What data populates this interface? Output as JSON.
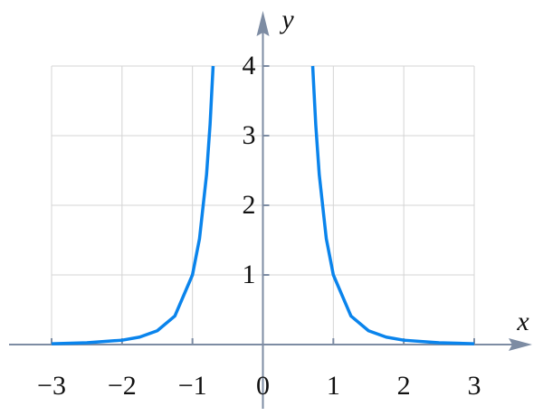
{
  "chart_data": {
    "type": "line",
    "x_label": "x",
    "y_label": "y",
    "x": [
      -3,
      -2.5,
      -2,
      -1.75,
      -1.5,
      -1.25,
      -1,
      -0.9,
      -0.8,
      -0.75,
      -0.707,
      0,
      0.707,
      0.75,
      0.8,
      0.9,
      1,
      1.25,
      1.5,
      1.75,
      2,
      2.5,
      3
    ],
    "series": [
      {
        "color": "#0a84ec",
        "values": [
          0.012,
          0.026,
          0.0625,
          0.107,
          0.198,
          0.41,
          1,
          1.52,
          2.44,
          3.16,
          4,
          null,
          4,
          3.16,
          2.44,
          1.52,
          1,
          0.41,
          0.198,
          0.107,
          0.0625,
          0.026,
          0.012
        ]
      }
    ],
    "xlim": [
      -3,
      3
    ],
    "ylim": [
      0,
      4
    ],
    "xticks": [
      {
        "value": -3,
        "label": "−3"
      },
      {
        "value": -2,
        "label": "−2"
      },
      {
        "value": -1,
        "label": "−1"
      },
      0,
      1,
      2,
      3
    ],
    "yticks": [
      1,
      2,
      3,
      4
    ],
    "grid": true,
    "axis_color": "#7d8ca3"
  }
}
